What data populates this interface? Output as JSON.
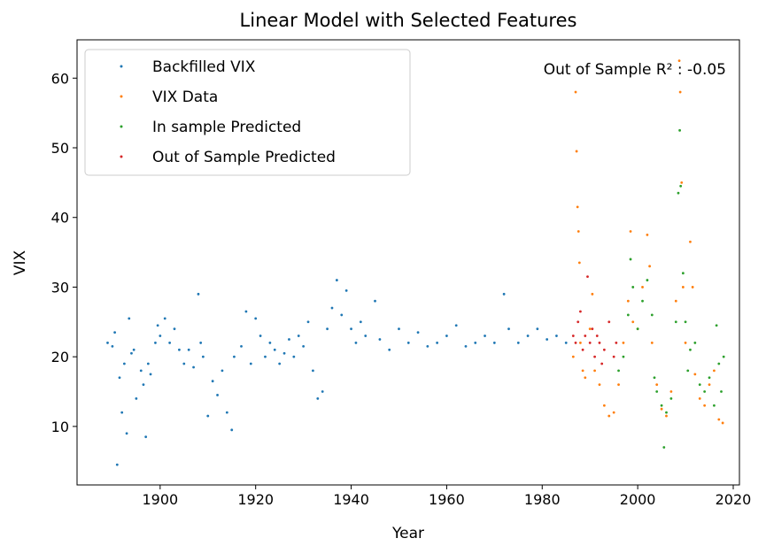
{
  "chart_data": {
    "type": "scatter",
    "title": "Linear Model with Selected Features",
    "x_label": "Year",
    "y_label": "VIX",
    "annotation": "Out of Sample R² : -0.05",
    "xlim": [
      1882.6,
      2021.3
    ],
    "ylim": [
      1.6,
      65.5
    ],
    "xticks": [
      1900,
      1920,
      1940,
      1960,
      1980,
      2000,
      2020
    ],
    "yticks": [
      10,
      20,
      30,
      40,
      50,
      60
    ],
    "legend": "upper left",
    "series": [
      {
        "name": "Backfilled VIX",
        "color": "#1f77b4",
        "x": [
          1889,
          1890,
          1890.5,
          1891,
          1891.5,
          1892,
          1892.5,
          1893,
          1893.5,
          1894,
          1894.5,
          1895,
          1896,
          1896.5,
          1897,
          1897.5,
          1898,
          1899,
          1899.5,
          1900,
          1901,
          1902,
          1903,
          1904,
          1905,
          1906,
          1907,
          1908,
          1908.5,
          1909,
          1910,
          1911,
          1912,
          1913,
          1914,
          1915,
          1915.5,
          1917,
          1918,
          1919,
          1920,
          1921,
          1922,
          1923,
          1924,
          1925,
          1926,
          1927,
          1928,
          1929,
          1930,
          1931,
          1932,
          1933,
          1934,
          1935,
          1936,
          1937,
          1938,
          1939,
          1940,
          1941,
          1942,
          1943,
          1945,
          1946,
          1948,
          1950,
          1952,
          1954,
          1956,
          1958,
          1960,
          1962,
          1964,
          1966,
          1968,
          1970,
          1972,
          1973,
          1975,
          1977,
          1979,
          1981,
          1983,
          1985
        ],
        "values": [
          22,
          21.5,
          23.5,
          4.5,
          17,
          12,
          19,
          9,
          25.5,
          20.5,
          21,
          14,
          18,
          16,
          8.5,
          19,
          17.5,
          22,
          24.5,
          23,
          25.5,
          22,
          24,
          21,
          19,
          21,
          18.5,
          29,
          22,
          20,
          11.5,
          16.5,
          14.5,
          18,
          12,
          9.5,
          20,
          21.5,
          26.5,
          19,
          25.5,
          23,
          20,
          22,
          21,
          19,
          20.5,
          22.5,
          20,
          23,
          21.5,
          25,
          18,
          14,
          15,
          24,
          27,
          31,
          26,
          29.5,
          24,
          22,
          25,
          23,
          28,
          22.5,
          21,
          24,
          22,
          23.5,
          21.5,
          22,
          23,
          24.5,
          21.5,
          22,
          23,
          22,
          29,
          24,
          22,
          23,
          24,
          22.5,
          23,
          22
        ]
      },
      {
        "name": "VIX Data",
        "color": "#ff7f0e",
        "x": [
          1986.5,
          1987,
          1987.2,
          1987.4,
          1987.6,
          1987.8,
          1988,
          1988.5,
          1989,
          1990,
          1990.5,
          1991,
          1992,
          1993,
          1994,
          1995,
          1996,
          1997,
          1998,
          1998.5,
          1999,
          2000,
          2001,
          2002,
          2002.5,
          2003,
          2004,
          2005,
          2006,
          2007,
          2008,
          2008.7,
          2008.9,
          2009.2,
          2009.5,
          2010,
          2011,
          2011.5,
          2012,
          2013,
          2014,
          2015,
          2016,
          2017,
          2017.8
        ],
        "values": [
          20,
          58,
          49.5,
          41.5,
          38,
          33.5,
          22,
          18,
          17,
          24,
          29,
          18,
          16,
          13,
          11.5,
          12,
          16,
          22,
          28,
          38,
          25,
          24,
          30,
          37.5,
          33,
          22,
          16,
          12.5,
          11.5,
          15,
          28,
          62.5,
          58,
          45,
          30,
          22,
          36.5,
          30,
          17.5,
          14,
          13,
          16,
          18,
          11,
          10.5
        ]
      },
      {
        "name": "In sample Predicted",
        "color": "#2ca02c",
        "x": [
          1996,
          1997,
          1998,
          1998.5,
          1999,
          2000,
          2001,
          2002,
          2003,
          2003.5,
          2004,
          2005,
          2005.5,
          2006,
          2007,
          2008,
          2008.5,
          2008.8,
          2009,
          2009.5,
          2010,
          2010.5,
          2011,
          2012,
          2013,
          2014,
          2015,
          2016,
          2016.5,
          2017,
          2017.5,
          2018
        ],
        "values": [
          18,
          20,
          26,
          34,
          30,
          24,
          28,
          31,
          26,
          17,
          15,
          13,
          7,
          12,
          14,
          25,
          43.5,
          52.5,
          44.5,
          32,
          25,
          18,
          21,
          22,
          16,
          15,
          17,
          13,
          24.5,
          19,
          15,
          20
        ]
      },
      {
        "name": "Out of Sample Predicted",
        "color": "#d62728",
        "x": [
          1986.5,
          1987,
          1987.5,
          1988,
          1988.5,
          1989,
          1989.5,
          1990,
          1990.5,
          1991,
          1991.5,
          1992,
          1992.5,
          1993,
          1994,
          1995,
          1995.5
        ],
        "values": [
          23,
          22,
          25,
          26.5,
          21,
          23,
          31.5,
          22,
          24,
          20,
          23,
          22,
          19,
          21,
          25,
          20,
          22
        ]
      }
    ]
  }
}
